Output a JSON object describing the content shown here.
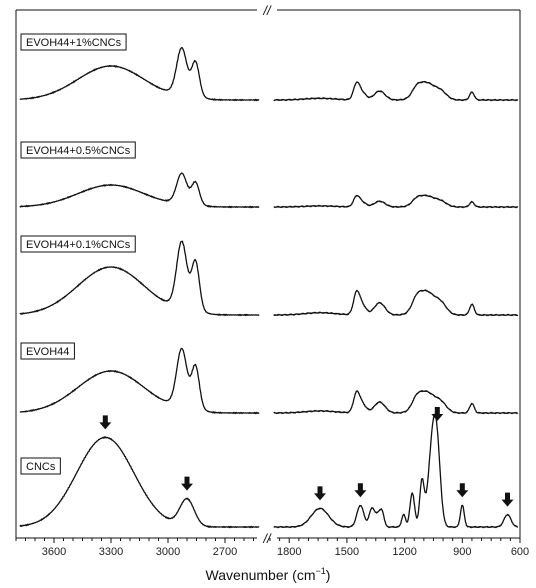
{
  "chart_data": {
    "type": "line",
    "title": "",
    "xlabel": "Wavenumber (cm",
    "xlabel_sup": "−1",
    "xlabel_close": ")",
    "axis_break": "//",
    "x_axis_left_segment": {
      "xlim": [
        3800,
        2500
      ],
      "ticks": [
        "3600",
        "3300",
        "3000",
        "2700"
      ]
    },
    "x_axis_right_segment": {
      "xlim": [
        1900,
        600
      ],
      "ticks": [
        "1800",
        "1500",
        "1200",
        "900",
        "600"
      ]
    },
    "y_ticks_visible": false,
    "spectra": [
      {
        "name": "EVOH44+1%CNCs",
        "order": 1
      },
      {
        "name": "EVOH44+0.5%CNCs",
        "order": 2
      },
      {
        "name": "EVOH44+0.1%CNCs",
        "order": 3
      },
      {
        "name": "EVOH44",
        "order": 4
      },
      {
        "name": "CNCs",
        "order": 5
      }
    ],
    "arrows_wavenumber": [
      3330,
      2900,
      1640,
      1430,
      1030,
      900,
      665
    ],
    "peaks_evoh": [
      3300,
      2930,
      2855,
      1450,
      1330,
      1090,
      850
    ],
    "peaks_cncs": [
      3330,
      2900,
      1640,
      1430,
      1370,
      1160,
      1110,
      1055,
      1030,
      900,
      665
    ]
  }
}
